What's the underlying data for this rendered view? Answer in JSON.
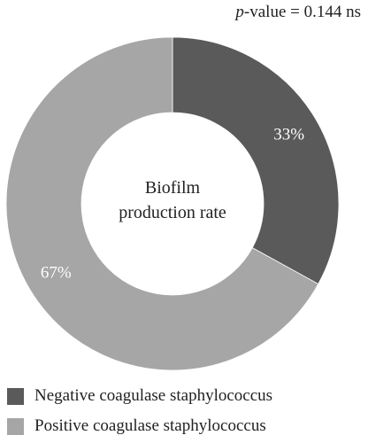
{
  "chart_data": {
    "type": "pie",
    "variant": "donut",
    "categories": [
      "Negative coagulase staphylococcus",
      "Positive coagulase staphylococcus"
    ],
    "values": [
      33,
      67
    ],
    "value_labels": [
      "33%",
      "67%"
    ],
    "colors": [
      "#5a5a5a",
      "#a6a6a6"
    ],
    "label_colors": [
      "#ffffff",
      "#ffffff"
    ],
    "center_label_lines": [
      "Biofilm",
      "production rate"
    ],
    "annotation": {
      "prefix": "p",
      "text": "-value = 0.144 ns"
    },
    "legend": {
      "placement": "bottom-left",
      "entries": [
        "Negative coagulase staphylococcus",
        "Positive coagulase staphylococcus"
      ]
    },
    "start_angle": "12 o'clock",
    "direction": "clockwise"
  }
}
